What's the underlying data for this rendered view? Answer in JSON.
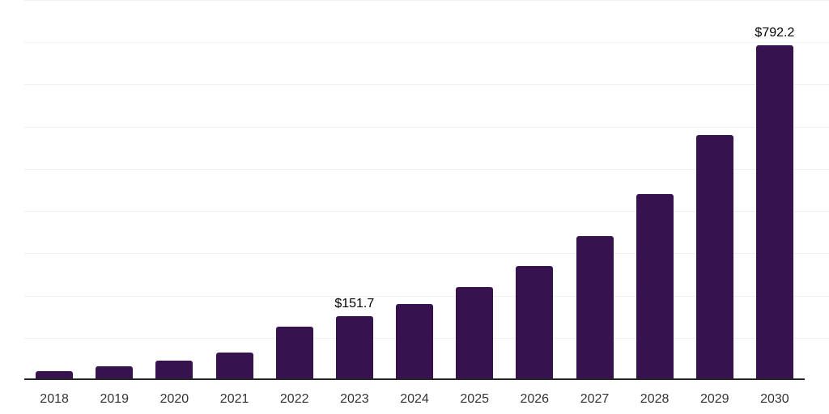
{
  "chart_data": {
    "type": "bar",
    "title": "",
    "xlabel": "",
    "ylabel": "",
    "categories": [
      "2018",
      "2019",
      "2020",
      "2021",
      "2022",
      "2023",
      "2024",
      "2025",
      "2026",
      "2027",
      "2028",
      "2029",
      "2030"
    ],
    "values": [
      22,
      33,
      46,
      65,
      126,
      151.7,
      180,
      220,
      270,
      340,
      440,
      580,
      792.2
    ],
    "value_prefix": "$",
    "labeled_points": [
      {
        "category": "2023",
        "label": "$151.7"
      },
      {
        "category": "2030",
        "label": "$792.2"
      }
    ],
    "ylim": [
      0,
      900
    ],
    "grid": true,
    "grid_step": 100,
    "y_tick_labels_visible": false,
    "legend_position": "none"
  },
  "colors": {
    "background": "#ffffff",
    "bar": "#36124e",
    "gridline": "#f0f0f0",
    "axis_line": "#262626",
    "x_tick_label": "#333333",
    "value_label": "#000000"
  }
}
